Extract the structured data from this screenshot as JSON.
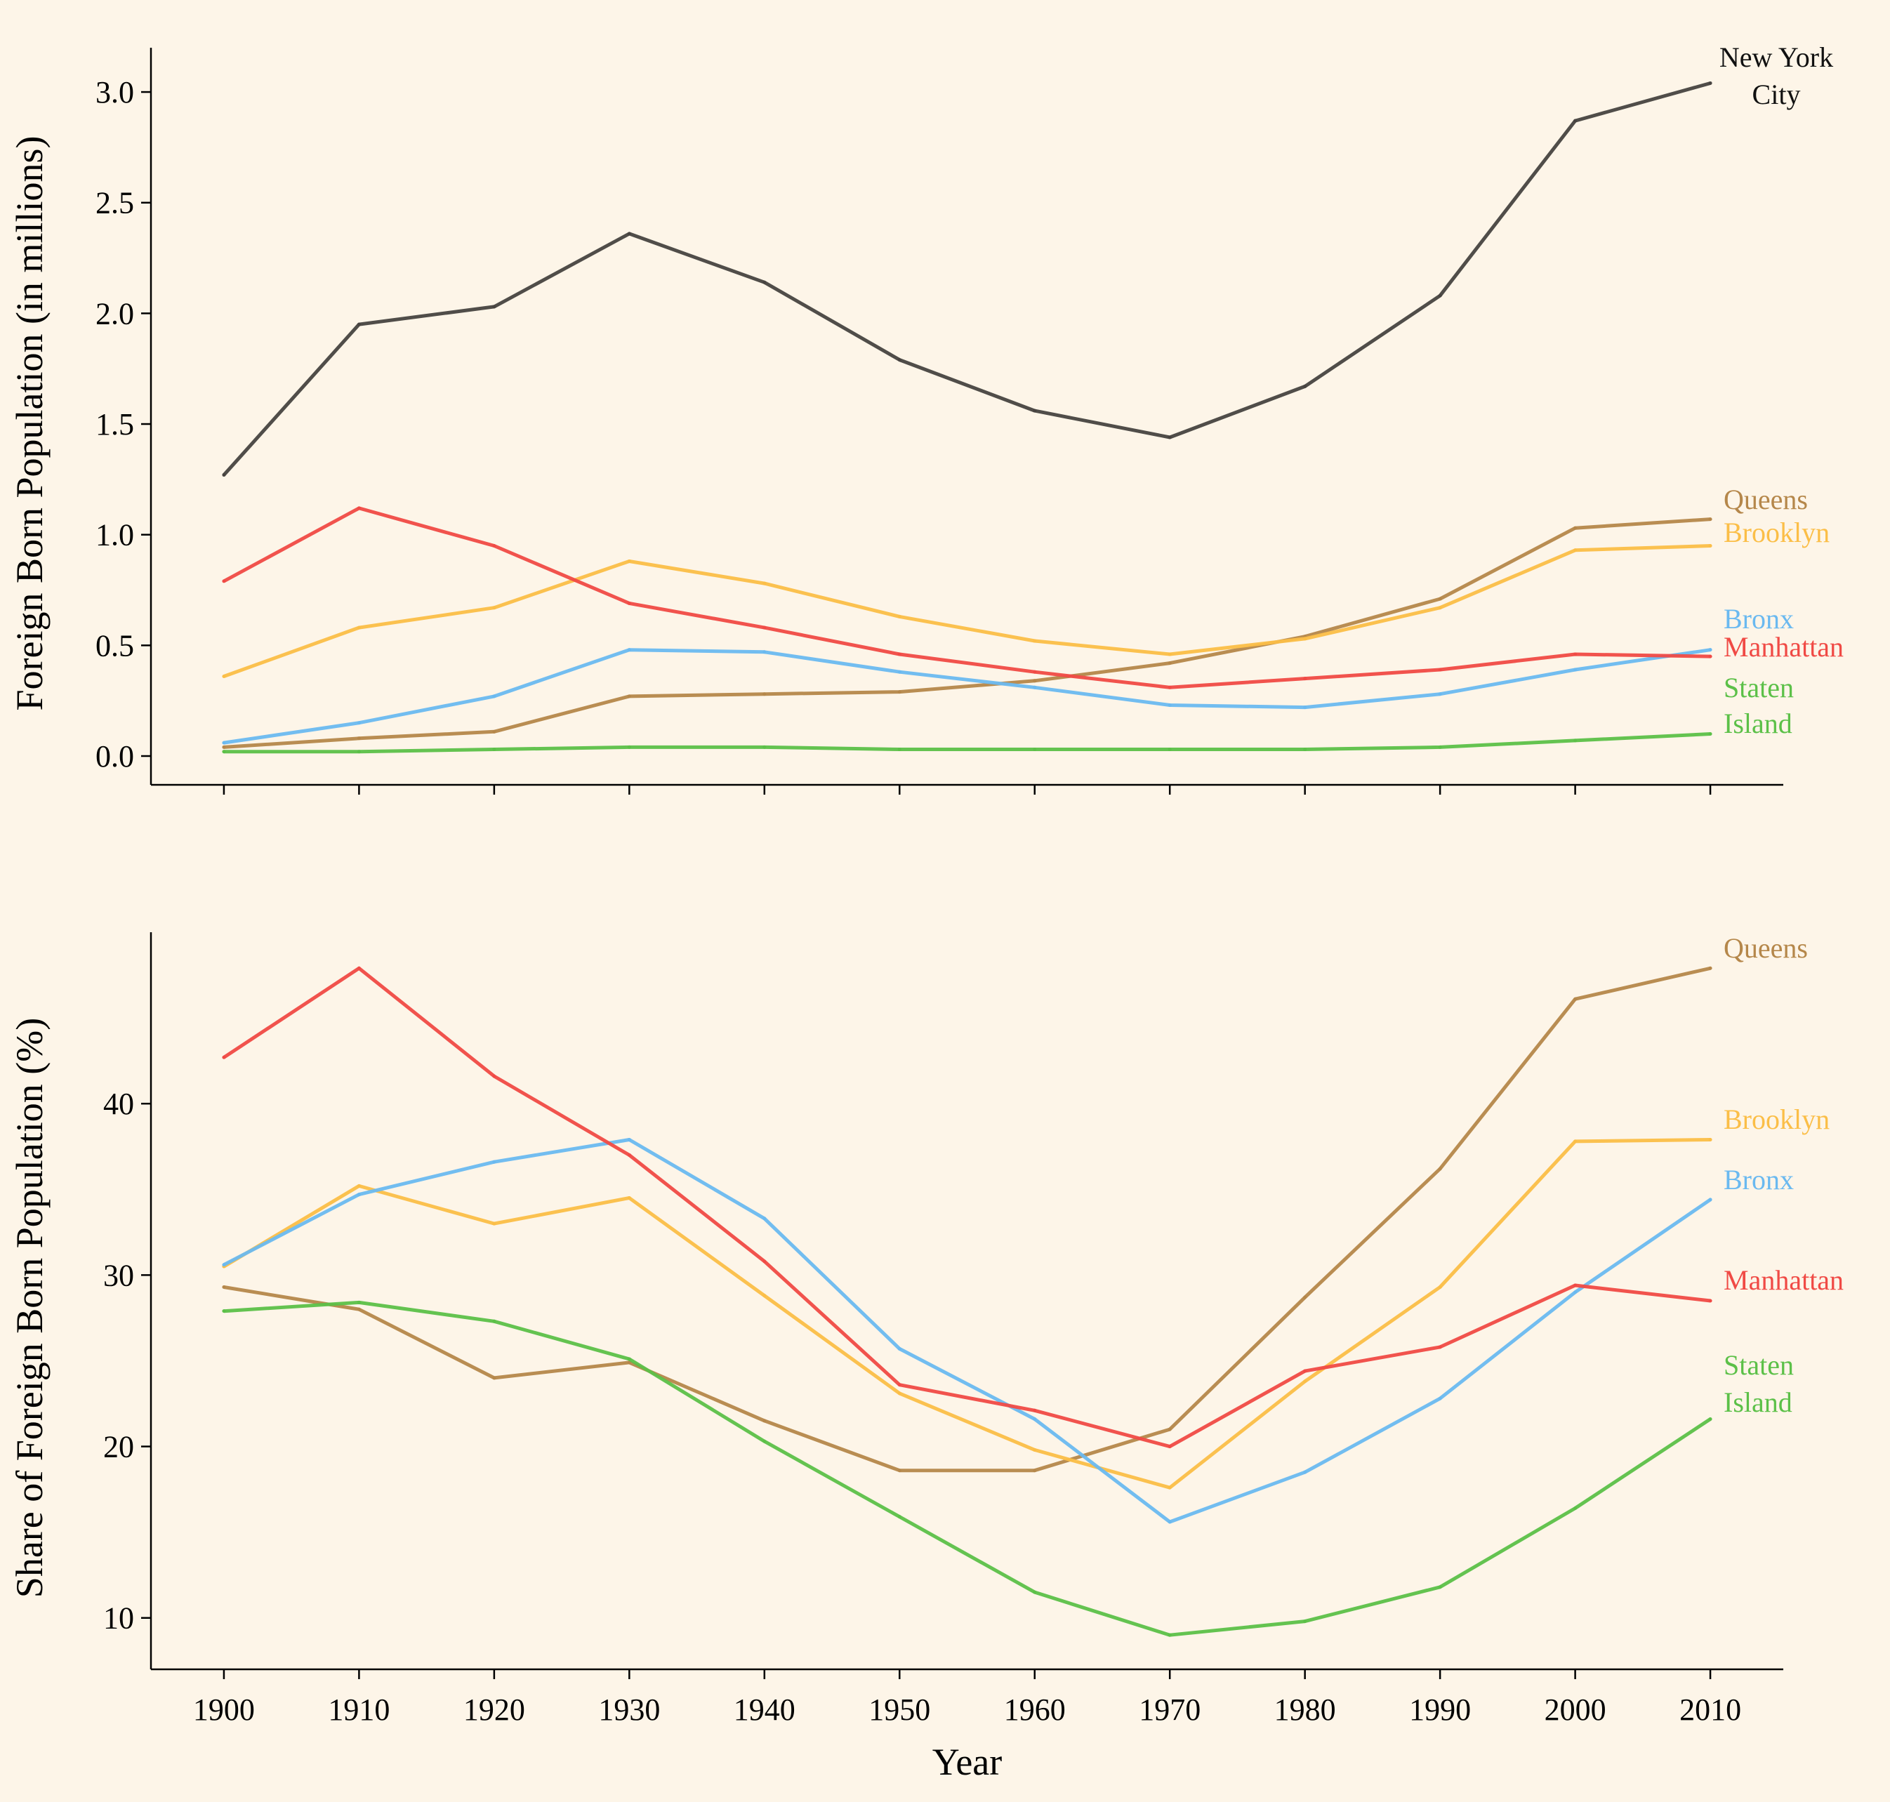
{
  "chart_data": [
    {
      "type": "line",
      "title": "",
      "xlabel": "",
      "ylabel": "Foreign Born Population (in millions)",
      "x": [
        1900,
        1910,
        1920,
        1930,
        1940,
        1950,
        1960,
        1970,
        1980,
        1990,
        2000,
        2010
      ],
      "xticks": [
        "1900",
        "1910",
        "1920",
        "1930",
        "1940",
        "1950",
        "1960",
        "1970",
        "1980",
        "1990",
        "2000",
        "2010"
      ],
      "yticks": [
        "0.0",
        "0.5",
        "1.0",
        "1.5",
        "2.0",
        "2.5",
        "3.0"
      ],
      "ylim": [
        -0.13,
        3.2
      ],
      "grid": false,
      "series": [
        {
          "name": "New York\nCity",
          "color": "#474340",
          "values": [
            1.27,
            1.95,
            2.03,
            2.36,
            2.14,
            1.79,
            1.56,
            1.44,
            1.67,
            2.08,
            2.87,
            3.04
          ]
        },
        {
          "name": "Queens",
          "color": "#b5874a",
          "values": [
            0.04,
            0.08,
            0.11,
            0.27,
            0.28,
            0.29,
            0.34,
            0.42,
            0.54,
            0.71,
            1.03,
            1.07
          ]
        },
        {
          "name": "Brooklyn",
          "color": "#fbbe47",
          "values": [
            0.36,
            0.58,
            0.67,
            0.88,
            0.78,
            0.63,
            0.52,
            0.46,
            0.53,
            0.67,
            0.93,
            0.95
          ]
        },
        {
          "name": "Bronx",
          "color": "#6ab9f0",
          "values": [
            0.06,
            0.15,
            0.27,
            0.48,
            0.47,
            0.38,
            0.31,
            0.23,
            0.22,
            0.28,
            0.39,
            0.48
          ]
        },
        {
          "name": "Manhattan",
          "color": "#f04a45",
          "values": [
            0.79,
            1.12,
            0.95,
            0.69,
            0.58,
            0.46,
            0.38,
            0.31,
            0.35,
            0.39,
            0.46,
            0.45
          ]
        },
        {
          "name": "Staten\nIsland",
          "color": "#5cc048",
          "values": [
            0.02,
            0.02,
            0.03,
            0.04,
            0.04,
            0.03,
            0.03,
            0.03,
            0.03,
            0.04,
            0.07,
            0.1
          ]
        }
      ]
    },
    {
      "type": "line",
      "title": "",
      "xlabel": "Year",
      "ylabel": "Share of Foreign Born Population (%)",
      "x": [
        1900,
        1910,
        1920,
        1930,
        1940,
        1950,
        1960,
        1970,
        1980,
        1990,
        2000,
        2010
      ],
      "xticks": [
        "1900",
        "1910",
        "1920",
        "1930",
        "1940",
        "1950",
        "1960",
        "1970",
        "1980",
        "1990",
        "2000",
        "2010"
      ],
      "yticks": [
        "10",
        "20",
        "30",
        "40"
      ],
      "ylim": [
        7,
        50
      ],
      "grid": false,
      "series": [
        {
          "name": "Queens",
          "color": "#b5874a",
          "values": [
            29.3,
            28.0,
            24.0,
            24.9,
            21.5,
            18.6,
            18.6,
            21.0,
            28.7,
            36.2,
            46.1,
            47.9
          ]
        },
        {
          "name": "Brooklyn",
          "color": "#fbbe47",
          "values": [
            30.5,
            35.2,
            33.0,
            34.5,
            28.8,
            23.1,
            19.8,
            17.6,
            23.8,
            29.3,
            37.8,
            37.9
          ]
        },
        {
          "name": "Bronx",
          "color": "#6ab9f0",
          "values": [
            30.6,
            34.7,
            36.6,
            37.9,
            33.3,
            25.7,
            21.6,
            15.6,
            18.5,
            22.8,
            29.0,
            34.4
          ]
        },
        {
          "name": "Manhattan",
          "color": "#f04a45",
          "values": [
            42.7,
            47.9,
            41.6,
            37.0,
            30.8,
            23.6,
            22.1,
            20.0,
            24.4,
            25.8,
            29.4,
            28.5
          ]
        },
        {
          "name": "Staten\nIsland",
          "color": "#5cc048",
          "values": [
            27.9,
            28.4,
            27.3,
            25.1,
            20.3,
            15.9,
            11.5,
            9.0,
            9.8,
            11.8,
            16.4,
            21.6
          ]
        }
      ]
    }
  ]
}
